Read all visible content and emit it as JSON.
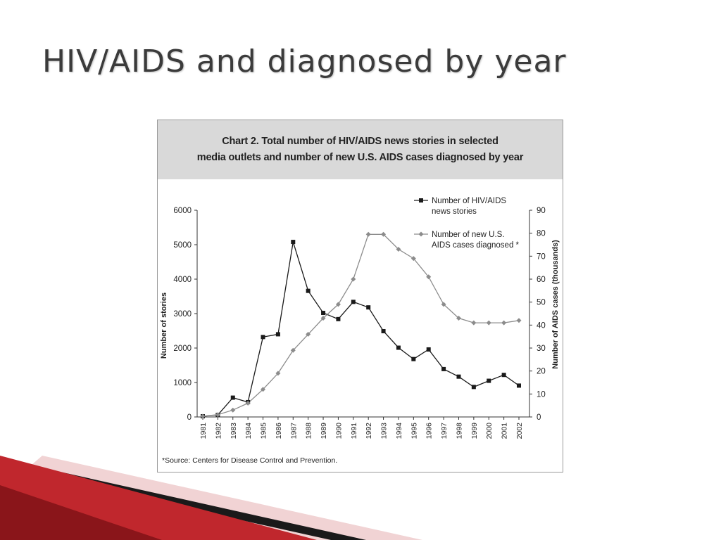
{
  "slide": {
    "title": "HIV/AIDS and diagnosed by year"
  },
  "chart_data": {
    "type": "line",
    "title_line1": "Chart 2. Total number of HIV/AIDS news stories in selected",
    "title_line2": "media outlets and number of new U.S. AIDS cases diagnosed by year",
    "ylabel": "Number of stories",
    "y2label": "Number of AIDS cases (thousands)",
    "ylim": [
      0,
      6000
    ],
    "y2lim": [
      0,
      90
    ],
    "yticks": [
      "0",
      "1000",
      "2000",
      "3000",
      "4000",
      "5000",
      "6000"
    ],
    "y2ticks": [
      "0",
      "10",
      "20",
      "30",
      "40",
      "50",
      "60",
      "70",
      "80",
      "90"
    ],
    "x": [
      "1981",
      "1982",
      "1983",
      "1984",
      "1985",
      "1986",
      "1987",
      "1988",
      "1989",
      "1990",
      "1991",
      "1992",
      "1993",
      "1994",
      "1995",
      "1996",
      "1997",
      "1998",
      "1999",
      "2000",
      "2001",
      "2002"
    ],
    "legend_placement": "top-right",
    "series": [
      {
        "name_line1": "Number of HIV/AIDS",
        "name_line2": "news stories",
        "axis": "left",
        "marker": "square",
        "color": "#1a1a1a",
        "values": [
          20,
          60,
          560,
          430,
          2320,
          2400,
          5080,
          3660,
          3020,
          2840,
          3340,
          3180,
          2490,
          2010,
          1680,
          1960,
          1390,
          1170,
          870,
          1050,
          1220,
          910
        ]
      },
      {
        "name_line1": "Number of new U.S.",
        "name_line2": "AIDS cases diagnosed *",
        "axis": "right",
        "marker": "diamond",
        "color": "#8c8c8c",
        "values": [
          0.3,
          1,
          3,
          6,
          12,
          19,
          29,
          36,
          43,
          49,
          60,
          79.5,
          79.5,
          73,
          69,
          61,
          49,
          43,
          41,
          41,
          41,
          42
        ]
      }
    ],
    "source_note": "*Source: Centers for Disease Control and Prevention."
  },
  "theme": {
    "accent_dark": "#7a0e12",
    "accent": "#c0272d",
    "accent_light": "#e8a5a8"
  }
}
